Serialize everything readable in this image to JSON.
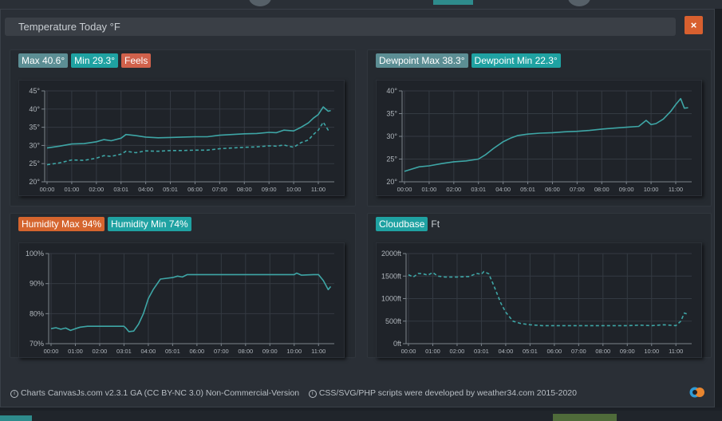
{
  "title": "Temperature Today °F",
  "close_label": "×",
  "footer": {
    "left": "Charts CanvasJs.com v2.3.1 GA (CC BY-NC 3.0) Non-Commercial-Version",
    "right": "CSS/SVG/PHP scripts were developed by weather34.com 2015-2020"
  },
  "panels": {
    "temp": {
      "badges": [
        {
          "text": "Max 40.6°"
        },
        {
          "text": "Min 29.3°"
        },
        {
          "text": "Feels"
        }
      ]
    },
    "dew": {
      "badges": [
        {
          "text": "Dewpoint Max 38.3°"
        },
        {
          "text": "Dewpoint Min 22.3°"
        }
      ]
    },
    "hum": {
      "badges": [
        {
          "text": "Humidity Max 94%"
        },
        {
          "text": "Humidity Min 74%"
        }
      ]
    },
    "cloud": {
      "badge": "Cloudbase",
      "unit": "Ft"
    }
  },
  "colors": {
    "line": "#3ea6a6",
    "grid": "#343a42",
    "axis": "#7c848c",
    "label": "#b0b6bc"
  },
  "chart_data": [
    {
      "id": "temp",
      "type": "line",
      "x": [
        "00:00",
        "01:00",
        "02:00",
        "03:01",
        "04:00",
        "05:01",
        "06:00",
        "07:00",
        "08:00",
        "09:00",
        "10:00",
        "11:00"
      ],
      "ylim": [
        20,
        45
      ],
      "yticks": [
        20,
        25,
        30,
        35,
        40,
        45
      ],
      "ytick_labels": [
        "20°",
        "25°",
        "30°",
        "35°",
        "40°",
        "45°"
      ],
      "series": [
        {
          "style": "solid",
          "points": [
            [
              0,
              29.3
            ],
            [
              0.5,
              29.8
            ],
            [
              1,
              30.4
            ],
            [
              1.5,
              30.5
            ],
            [
              2,
              31
            ],
            [
              2.3,
              31.6
            ],
            [
              2.6,
              31.3
            ],
            [
              3,
              32
            ],
            [
              3.2,
              33
            ],
            [
              3.6,
              32.7
            ],
            [
              4,
              32.3
            ],
            [
              4.5,
              32.1
            ],
            [
              5,
              32.2
            ],
            [
              5.5,
              32.3
            ],
            [
              6,
              32.4
            ],
            [
              6.5,
              32.4
            ],
            [
              7,
              32.8
            ],
            [
              7.5,
              33
            ],
            [
              8,
              33.2
            ],
            [
              8.5,
              33.3
            ],
            [
              9,
              33.6
            ],
            [
              9.3,
              33.5
            ],
            [
              9.6,
              34.2
            ],
            [
              10,
              34
            ],
            [
              10.3,
              35
            ],
            [
              10.6,
              36.2
            ],
            [
              10.8,
              37.5
            ],
            [
              11,
              38.5
            ],
            [
              11.2,
              40.6
            ],
            [
              11.4,
              39.4
            ],
            [
              11.5,
              39.6
            ]
          ]
        },
        {
          "style": "dashed",
          "points": [
            [
              0,
              24.7
            ],
            [
              0.5,
              25.2
            ],
            [
              1,
              26
            ],
            [
              1.5,
              25.9
            ],
            [
              2,
              26.5
            ],
            [
              2.3,
              27.2
            ],
            [
              2.6,
              27
            ],
            [
              3,
              27.6
            ],
            [
              3.2,
              28.4
            ],
            [
              3.6,
              28
            ],
            [
              4,
              28.5
            ],
            [
              4.5,
              28.4
            ],
            [
              5,
              28.6
            ],
            [
              5.5,
              28.6
            ],
            [
              6,
              28.7
            ],
            [
              6.5,
              28.7
            ],
            [
              7,
              29.1
            ],
            [
              7.5,
              29.3
            ],
            [
              8,
              29.5
            ],
            [
              8.5,
              29.6
            ],
            [
              9,
              29.9
            ],
            [
              9.3,
              29.8
            ],
            [
              9.6,
              30.1
            ],
            [
              10,
              29.5
            ],
            [
              10.3,
              30.8
            ],
            [
              10.6,
              31.5
            ],
            [
              10.8,
              33
            ],
            [
              11,
              34.2
            ],
            [
              11.2,
              36.4
            ],
            [
              11.4,
              34.2
            ],
            [
              11.5,
              34.3
            ]
          ]
        }
      ]
    },
    {
      "id": "dew",
      "type": "line",
      "x": [
        "00:00",
        "01:00",
        "02:00",
        "03:01",
        "04:00",
        "05:01",
        "06:00",
        "07:00",
        "08:00",
        "09:00",
        "10:00",
        "11:00"
      ],
      "ylim": [
        20,
        40
      ],
      "yticks": [
        20,
        25,
        30,
        35,
        40
      ],
      "ytick_labels": [
        "20°",
        "25°",
        "30°",
        "35°",
        "40°"
      ],
      "series": [
        {
          "style": "solid",
          "points": [
            [
              0,
              22.3
            ],
            [
              0.3,
              22.8
            ],
            [
              0.6,
              23.3
            ],
            [
              1,
              23.5
            ],
            [
              1.5,
              24
            ],
            [
              2,
              24.4
            ],
            [
              2.5,
              24.6
            ],
            [
              3,
              25
            ],
            [
              3.3,
              26
            ],
            [
              3.6,
              27.3
            ],
            [
              4,
              28.8
            ],
            [
              4.3,
              29.6
            ],
            [
              4.6,
              30.2
            ],
            [
              5,
              30.5
            ],
            [
              5.5,
              30.7
            ],
            [
              6,
              30.8
            ],
            [
              6.5,
              31
            ],
            [
              7,
              31.1
            ],
            [
              7.5,
              31.3
            ],
            [
              8,
              31.6
            ],
            [
              8.5,
              31.8
            ],
            [
              9,
              32
            ],
            [
              9.5,
              32.2
            ],
            [
              9.8,
              33.5
            ],
            [
              10,
              32.6
            ],
            [
              10.2,
              32.8
            ],
            [
              10.5,
              33.8
            ],
            [
              10.8,
              35.5
            ],
            [
              11,
              37
            ],
            [
              11.2,
              38.3
            ],
            [
              11.35,
              36.2
            ],
            [
              11.5,
              36.3
            ]
          ]
        }
      ]
    },
    {
      "id": "hum",
      "type": "line",
      "x": [
        "00:00",
        "01:00",
        "02:00",
        "03:01",
        "04:00",
        "05:01",
        "06:00",
        "07:00",
        "08:00",
        "09:00",
        "10:00",
        "11:00"
      ],
      "ylim": [
        70,
        100
      ],
      "yticks": [
        70,
        80,
        90,
        100
      ],
      "ytick_labels": [
        "70%",
        "80%",
        "90%",
        "100%"
      ],
      "series": [
        {
          "style": "solid",
          "points": [
            [
              0,
              75
            ],
            [
              0.2,
              75.3
            ],
            [
              0.4,
              74.8
            ],
            [
              0.6,
              75.2
            ],
            [
              0.8,
              74.4
            ],
            [
              1,
              75
            ],
            [
              1.2,
              75.5
            ],
            [
              1.5,
              75.8
            ],
            [
              2,
              75.8
            ],
            [
              2.5,
              75.8
            ],
            [
              3,
              75.8
            ],
            [
              3.1,
              75
            ],
            [
              3.2,
              74
            ],
            [
              3.4,
              74.2
            ],
            [
              3.6,
              76.5
            ],
            [
              3.8,
              80
            ],
            [
              4,
              85
            ],
            [
              4.2,
              88
            ],
            [
              4.5,
              91.5
            ],
            [
              5,
              92
            ],
            [
              5.2,
              92.5
            ],
            [
              5.4,
              92.2
            ],
            [
              5.6,
              93
            ],
            [
              6,
              93
            ],
            [
              7,
              93
            ],
            [
              8,
              93
            ],
            [
              9,
              93
            ],
            [
              9.5,
              93
            ],
            [
              10,
              93
            ],
            [
              10.1,
              93.5
            ],
            [
              10.3,
              92.8
            ],
            [
              10.8,
              93
            ],
            [
              11,
              93
            ],
            [
              11.2,
              91
            ],
            [
              11.4,
              88
            ],
            [
              11.5,
              89
            ]
          ]
        }
      ]
    },
    {
      "id": "cloud",
      "type": "line",
      "x": [
        "00:00",
        "01:00",
        "02:00",
        "03:01",
        "04:00",
        "05:01",
        "06:00",
        "07:00",
        "08:00",
        "09:00",
        "10:00",
        "11:00"
      ],
      "ylim": [
        0,
        2000
      ],
      "yticks": [
        0,
        500,
        1000,
        1500,
        2000
      ],
      "ytick_labels": [
        "0ft",
        "500ft",
        "1000ft",
        "1500ft",
        "2000ft"
      ],
      "series": [
        {
          "style": "dashed",
          "points": [
            [
              0,
              1530
            ],
            [
              0.2,
              1480
            ],
            [
              0.4,
              1560
            ],
            [
              0.6,
              1550
            ],
            [
              0.8,
              1520
            ],
            [
              1,
              1580
            ],
            [
              1.2,
              1500
            ],
            [
              1.5,
              1480
            ],
            [
              2,
              1480
            ],
            [
              2.5,
              1490
            ],
            [
              2.8,
              1560
            ],
            [
              3,
              1540
            ],
            [
              3.1,
              1600
            ],
            [
              3.3,
              1550
            ],
            [
              3.5,
              1300
            ],
            [
              3.8,
              900
            ],
            [
              4,
              700
            ],
            [
              4.3,
              500
            ],
            [
              4.6,
              450
            ],
            [
              5,
              420
            ],
            [
              5.5,
              400
            ],
            [
              6,
              400
            ],
            [
              7,
              400
            ],
            [
              8,
              400
            ],
            [
              9,
              400
            ],
            [
              9.5,
              410
            ],
            [
              10,
              400
            ],
            [
              10.5,
              420
            ],
            [
              11,
              400
            ],
            [
              11.2,
              500
            ],
            [
              11.35,
              680
            ],
            [
              11.5,
              650
            ]
          ]
        }
      ]
    }
  ]
}
